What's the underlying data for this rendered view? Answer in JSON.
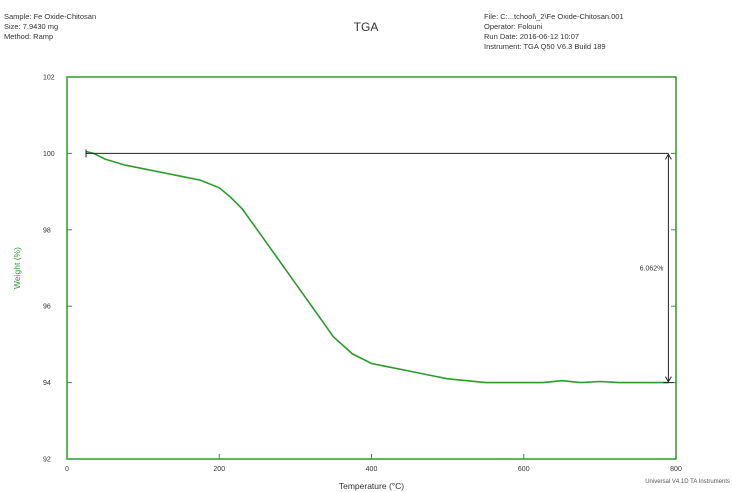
{
  "header_left": {
    "sample": "Sample: Fe Oxide-Chitosan",
    "size": "Size: 7.9430 mg",
    "method": "Method: Ramp"
  },
  "header_right": {
    "file": "File: C:...tchool\\_2\\Fe Oxide-Chitosan.001",
    "operator": "Operator: Folouni",
    "run_date": "Run Date: 2016-06-12 10:07",
    "instrument": "Instrument: TGA Q50 V6.3 Build 189"
  },
  "credit": "Universal V4.1D TA Instruments",
  "colors": {
    "curve": "#2d9a2d",
    "axis": "#2d9a2d",
    "ylabel": "#2d9a2d",
    "text": "#333333"
  },
  "chart_data": {
    "type": "line",
    "title": "TGA",
    "xlabel": "Temperature (°C)",
    "ylabel": "Weight (%)",
    "xlim": [
      0,
      800
    ],
    "ylim": [
      92,
      102
    ],
    "xticks": [
      0,
      200,
      400,
      600,
      800
    ],
    "yticks": [
      92,
      94,
      96,
      98,
      100,
      102
    ],
    "grid": false,
    "series": [
      {
        "x": [
          25,
          35,
          50,
          75,
          100,
          125,
          150,
          175,
          200,
          215,
          230,
          250,
          275,
          300,
          325,
          350,
          375,
          400,
          425,
          450,
          475,
          500,
          525,
          550,
          575,
          600,
          625,
          650,
          675,
          700,
          725,
          750,
          775,
          790
        ],
        "values": [
          100.05,
          100.0,
          99.85,
          99.7,
          99.6,
          99.5,
          99.4,
          99.3,
          99.1,
          98.85,
          98.55,
          98.0,
          97.3,
          96.6,
          95.9,
          95.2,
          94.75,
          94.5,
          94.4,
          94.3,
          94.2,
          94.1,
          94.05,
          94.0,
          94.0,
          94.0,
          94.0,
          94.05,
          94.0,
          94.03,
          94.0,
          94.0,
          94.0,
          94.0
        ]
      }
    ],
    "annotation": {
      "label": "6.062%",
      "x_temp": 790,
      "y_from": 100.0,
      "y_to": 94.0
    }
  }
}
